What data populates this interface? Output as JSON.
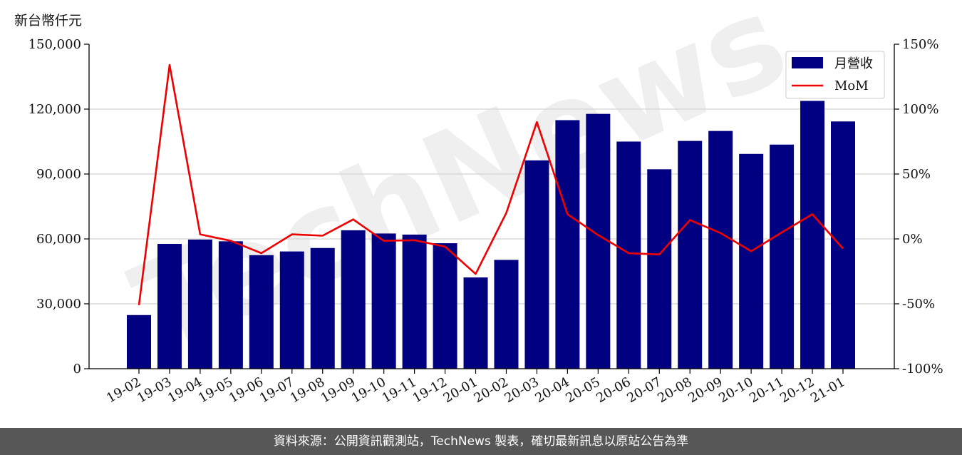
{
  "unit_label": "新台幣仟元",
  "footer_text": "資料來源：公開資訊觀測站，TechNews 製表，確切最新訊息以原站公告為準",
  "watermark_text": "TechNews",
  "colors": {
    "bar": "#000080",
    "line": "#ee0000",
    "grid": "#d3d3d3",
    "footer_bg": "#575757"
  },
  "chart_data": {
    "type": "bar",
    "categories": [
      "19-02",
      "19-03",
      "19-04",
      "19-05",
      "19-06",
      "19-07",
      "19-08",
      "19-09",
      "19-10",
      "19-11",
      "19-12",
      "20-01",
      "20-02",
      "20-03",
      "20-04",
      "20-05",
      "20-06",
      "20-07",
      "20-08",
      "20-09",
      "20-10",
      "20-11",
      "20-12",
      "21-01"
    ],
    "series": [
      {
        "name": "月營收",
        "type": "bar",
        "axis": "left",
        "values": [
          24800,
          57700,
          59700,
          58900,
          52500,
          54200,
          55800,
          64000,
          62500,
          62000,
          58000,
          42200,
          50300,
          96300,
          114900,
          117800,
          105000,
          92200,
          105300,
          109900,
          99300,
          103600,
          123800,
          114300
        ]
      },
      {
        "name": "MoM",
        "type": "line",
        "axis": "right",
        "values": [
          -51,
          134,
          3.5,
          -1.5,
          -11,
          3.5,
          2.5,
          15,
          -1.5,
          -1,
          -6,
          -27,
          20,
          90,
          19,
          3,
          -11,
          -12,
          14.5,
          4.5,
          -9.5,
          5,
          19,
          -7.5
        ]
      }
    ],
    "y_left": {
      "ylim": [
        0,
        150000
      ],
      "ticks": [
        0,
        30000,
        60000,
        90000,
        120000,
        150000
      ],
      "tick_labels": [
        "0",
        "30,000",
        "60,000",
        "90,000",
        "120,000",
        "150,000"
      ]
    },
    "y_right": {
      "ylim": [
        -100,
        150
      ],
      "ticks": [
        -100,
        -50,
        0,
        50,
        100,
        150
      ],
      "tick_labels": [
        "-100%",
        "-50%",
        "0%",
        "50%",
        "100%",
        "150%"
      ]
    },
    "grid": true,
    "legend_position": "top-right"
  }
}
